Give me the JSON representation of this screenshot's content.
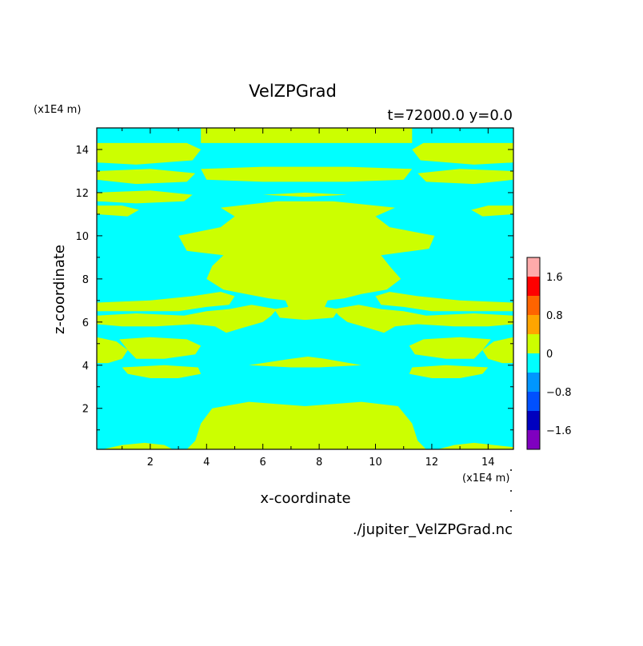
{
  "chart_data": {
    "type": "heatmap",
    "title": "VelZPGrad",
    "subtitle": "t=72000.0 y=0.0",
    "xlabel": "x-coordinate",
    "ylabel": "z-coordinate",
    "x_unit": "(x1E4 m)",
    "y_unit": "(x1E4 m)",
    "xlim": [
      0.1,
      14.9
    ],
    "ylim": [
      0.1,
      15.0
    ],
    "x_ticks": [
      2,
      4,
      6,
      8,
      10,
      12,
      14
    ],
    "y_ticks": [
      2,
      4,
      6,
      8,
      10,
      12,
      14
    ],
    "footer": "./jupiter_VelZPGrad.nc",
    "background_value_color": "#00ffff",
    "regions_value_color": "#ccff00",
    "colorbar": {
      "levels": [
        {
          "lo": -2.0,
          "hi": -1.6,
          "color": "#7f00bf"
        },
        {
          "lo": -1.6,
          "hi": -1.2,
          "color": "#0000bf"
        },
        {
          "lo": -1.2,
          "hi": -0.8,
          "color": "#0050ff"
        },
        {
          "lo": -0.8,
          "hi": -0.4,
          "color": "#0096ff"
        },
        {
          "lo": -0.4,
          "hi": 0.0,
          "color": "#00ffff"
        },
        {
          "lo": 0.0,
          "hi": 0.4,
          "color": "#ccff00"
        },
        {
          "lo": 0.4,
          "hi": 0.8,
          "color": "#ffa500"
        },
        {
          "lo": 0.8,
          "hi": 1.2,
          "color": "#ff6400"
        },
        {
          "lo": 1.2,
          "hi": 1.6,
          "color": "#ff0000"
        },
        {
          "lo": 1.6,
          "hi": 2.0,
          "color": "#ffaaaa"
        }
      ],
      "tick_labels": [
        {
          "value": 1.6,
          "label": "1.6"
        },
        {
          "value": 0.8,
          "label": "0.8"
        },
        {
          "value": 0.0,
          "label": "0"
        },
        {
          "value": -0.8,
          "label": "−0.8"
        },
        {
          "value": -1.6,
          "label": "−1.6"
        }
      ]
    },
    "positive_regions": [
      {
        "name": "top-center-band",
        "pts": [
          [
            3.8,
            15.0
          ],
          [
            11.3,
            15.0
          ],
          [
            11.3,
            14.3
          ],
          [
            3.8,
            14.3
          ]
        ]
      },
      {
        "name": "top-left-band-a",
        "pts": [
          [
            0.1,
            14.3
          ],
          [
            3.3,
            14.3
          ],
          [
            3.8,
            14.0
          ],
          [
            3.5,
            13.5
          ],
          [
            1.5,
            13.3
          ],
          [
            0.1,
            13.4
          ]
        ]
      },
      {
        "name": "top-left-band-b",
        "pts": [
          [
            0.1,
            13.0
          ],
          [
            2.0,
            13.1
          ],
          [
            3.6,
            12.9
          ],
          [
            3.3,
            12.5
          ],
          [
            1.5,
            12.4
          ],
          [
            0.1,
            12.6
          ]
        ]
      },
      {
        "name": "top-left-band-c",
        "pts": [
          [
            0.1,
            12.0
          ],
          [
            2.0,
            12.1
          ],
          [
            3.5,
            11.9
          ],
          [
            3.2,
            11.6
          ],
          [
            1.5,
            11.5
          ],
          [
            0.1,
            11.6
          ]
        ]
      },
      {
        "name": "left-stripe-11",
        "pts": [
          [
            0.1,
            11.4
          ],
          [
            1.0,
            11.4
          ],
          [
            1.6,
            11.2
          ],
          [
            1.2,
            10.9
          ],
          [
            0.1,
            11.0
          ]
        ]
      },
      {
        "name": "top-right-band-a",
        "pts": [
          [
            14.9,
            14.3
          ],
          [
            11.7,
            14.3
          ],
          [
            11.3,
            14.0
          ],
          [
            11.6,
            13.5
          ],
          [
            13.5,
            13.3
          ],
          [
            14.9,
            13.4
          ]
        ]
      },
      {
        "name": "top-right-band-b",
        "pts": [
          [
            14.9,
            13.0
          ],
          [
            13.0,
            13.1
          ],
          [
            11.5,
            12.9
          ],
          [
            11.8,
            12.5
          ],
          [
            13.5,
            12.4
          ],
          [
            14.9,
            12.6
          ]
        ]
      },
      {
        "name": "right-stripe-11",
        "pts": [
          [
            14.9,
            11.4
          ],
          [
            14.0,
            11.4
          ],
          [
            13.4,
            11.2
          ],
          [
            13.8,
            10.9
          ],
          [
            14.9,
            11.0
          ]
        ]
      },
      {
        "name": "band-13",
        "pts": [
          [
            3.8,
            13.1
          ],
          [
            6.0,
            13.2
          ],
          [
            9.0,
            13.2
          ],
          [
            11.3,
            13.1
          ],
          [
            11.0,
            12.6
          ],
          [
            9.0,
            12.5
          ],
          [
            6.0,
            12.5
          ],
          [
            4.0,
            12.6
          ]
        ]
      },
      {
        "name": "band-12",
        "pts": [
          [
            6.0,
            11.9
          ],
          [
            7.5,
            12.0
          ],
          [
            9.0,
            11.9
          ],
          [
            7.5,
            11.8
          ]
        ]
      },
      {
        "name": "center-main",
        "pts": [
          [
            3.0,
            10.0
          ],
          [
            4.5,
            10.4
          ],
          [
            5.0,
            10.9
          ],
          [
            4.5,
            11.3
          ],
          [
            6.5,
            11.6
          ],
          [
            8.5,
            11.6
          ],
          [
            10.7,
            11.3
          ],
          [
            10.0,
            10.9
          ],
          [
            10.5,
            10.4
          ],
          [
            12.1,
            10.0
          ],
          [
            11.9,
            9.4
          ],
          [
            10.2,
            9.1
          ],
          [
            10.5,
            8.6
          ],
          [
            10.9,
            8.0
          ],
          [
            10.4,
            7.5
          ],
          [
            9.5,
            7.3
          ],
          [
            8.9,
            7.1
          ],
          [
            8.3,
            7.0
          ],
          [
            8.2,
            6.7
          ],
          [
            8.7,
            6.6
          ],
          [
            8.5,
            6.2
          ],
          [
            7.5,
            6.1
          ],
          [
            6.6,
            6.2
          ],
          [
            6.4,
            6.6
          ],
          [
            6.9,
            6.7
          ],
          [
            6.8,
            7.0
          ],
          [
            6.2,
            7.1
          ],
          [
            5.4,
            7.3
          ],
          [
            4.6,
            7.5
          ],
          [
            4.0,
            8.0
          ],
          [
            4.2,
            8.6
          ],
          [
            4.6,
            9.1
          ],
          [
            3.3,
            9.3
          ]
        ]
      },
      {
        "name": "left-mid-arm-a",
        "pts": [
          [
            0.1,
            6.9
          ],
          [
            2.0,
            7.0
          ],
          [
            3.5,
            7.2
          ],
          [
            4.5,
            7.4
          ],
          [
            5.0,
            7.2
          ],
          [
            4.8,
            6.8
          ],
          [
            4.0,
            6.7
          ],
          [
            3.0,
            6.5
          ],
          [
            1.5,
            6.5
          ],
          [
            0.1,
            6.5
          ]
        ]
      },
      {
        "name": "left-mid-arm-b",
        "pts": [
          [
            0.1,
            6.3
          ],
          [
            1.5,
            6.4
          ],
          [
            3.2,
            6.3
          ],
          [
            4.0,
            6.5
          ],
          [
            4.8,
            6.6
          ],
          [
            5.6,
            6.8
          ],
          [
            6.5,
            6.6
          ],
          [
            6.3,
            6.3
          ],
          [
            6.0,
            6.0
          ],
          [
            5.2,
            5.7
          ],
          [
            4.7,
            5.5
          ],
          [
            4.3,
            5.8
          ],
          [
            3.5,
            5.9
          ],
          [
            2.2,
            5.8
          ],
          [
            1.0,
            5.8
          ],
          [
            0.1,
            5.9
          ]
        ]
      },
      {
        "name": "right-mid-arm-a",
        "pts": [
          [
            14.9,
            6.9
          ],
          [
            13.0,
            7.0
          ],
          [
            11.5,
            7.2
          ],
          [
            10.5,
            7.4
          ],
          [
            10.0,
            7.2
          ],
          [
            10.2,
            6.8
          ],
          [
            11.0,
            6.7
          ],
          [
            12.0,
            6.5
          ],
          [
            13.5,
            6.5
          ],
          [
            14.9,
            6.5
          ]
        ]
      },
      {
        "name": "right-mid-arm-b",
        "pts": [
          [
            14.9,
            6.3
          ],
          [
            13.5,
            6.4
          ],
          [
            11.8,
            6.3
          ],
          [
            11.0,
            6.5
          ],
          [
            10.2,
            6.6
          ],
          [
            9.4,
            6.8
          ],
          [
            8.5,
            6.6
          ],
          [
            8.7,
            6.3
          ],
          [
            9.0,
            6.0
          ],
          [
            9.8,
            5.7
          ],
          [
            10.3,
            5.5
          ],
          [
            10.7,
            5.8
          ],
          [
            11.5,
            5.9
          ],
          [
            12.8,
            5.8
          ],
          [
            14.0,
            5.8
          ],
          [
            14.9,
            5.9
          ]
        ]
      },
      {
        "name": "left-lobe-5",
        "pts": [
          [
            0.1,
            5.3
          ],
          [
            0.8,
            5.1
          ],
          [
            1.2,
            4.7
          ],
          [
            1.0,
            4.3
          ],
          [
            0.5,
            4.1
          ],
          [
            0.1,
            4.1
          ]
        ]
      },
      {
        "name": "left-band-5",
        "pts": [
          [
            0.9,
            5.2
          ],
          [
            2.0,
            5.3
          ],
          [
            3.3,
            5.2
          ],
          [
            3.8,
            4.9
          ],
          [
            3.6,
            4.5
          ],
          [
            2.5,
            4.3
          ],
          [
            1.5,
            4.3
          ],
          [
            1.2,
            4.7
          ]
        ]
      },
      {
        "name": "right-lobe-5",
        "pts": [
          [
            14.9,
            5.3
          ],
          [
            14.2,
            5.1
          ],
          [
            13.8,
            4.7
          ],
          [
            14.0,
            4.3
          ],
          [
            14.5,
            4.1
          ],
          [
            14.9,
            4.1
          ]
        ]
      },
      {
        "name": "right-band-5",
        "pts": [
          [
            14.1,
            5.2
          ],
          [
            13.0,
            5.3
          ],
          [
            11.7,
            5.2
          ],
          [
            11.2,
            4.9
          ],
          [
            11.4,
            4.5
          ],
          [
            12.5,
            4.3
          ],
          [
            13.5,
            4.3
          ],
          [
            13.8,
            4.7
          ]
        ]
      },
      {
        "name": "band-4-left",
        "pts": [
          [
            1.0,
            3.9
          ],
          [
            2.5,
            4.0
          ],
          [
            3.7,
            3.9
          ],
          [
            3.8,
            3.6
          ],
          [
            3.0,
            3.4
          ],
          [
            2.0,
            3.4
          ],
          [
            1.2,
            3.6
          ]
        ]
      },
      {
        "name": "band-4-right",
        "pts": [
          [
            14.0,
            3.9
          ],
          [
            12.5,
            4.0
          ],
          [
            11.3,
            3.9
          ],
          [
            11.2,
            3.6
          ],
          [
            12.0,
            3.4
          ],
          [
            13.0,
            3.4
          ],
          [
            13.8,
            3.6
          ]
        ]
      },
      {
        "name": "band-4-center",
        "pts": [
          [
            5.5,
            4.0
          ],
          [
            7.0,
            4.3
          ],
          [
            7.6,
            4.4
          ],
          [
            8.2,
            4.3
          ],
          [
            9.5,
            4.0
          ],
          [
            8.0,
            3.9
          ],
          [
            7.0,
            3.9
          ]
        ]
      },
      {
        "name": "bottom-center",
        "pts": [
          [
            3.3,
            0.1
          ],
          [
            3.6,
            0.5
          ],
          [
            3.8,
            1.3
          ],
          [
            4.2,
            2.0
          ],
          [
            5.5,
            2.3
          ],
          [
            7.5,
            2.1
          ],
          [
            9.5,
            2.3
          ],
          [
            10.8,
            2.1
          ],
          [
            11.3,
            1.3
          ],
          [
            11.5,
            0.5
          ],
          [
            11.8,
            0.1
          ]
        ]
      },
      {
        "name": "bottom-left-bump",
        "pts": [
          [
            0.3,
            0.1
          ],
          [
            1.0,
            0.3
          ],
          [
            1.8,
            0.4
          ],
          [
            2.5,
            0.3
          ],
          [
            2.8,
            0.1
          ]
        ]
      },
      {
        "name": "bottom-right-bump",
        "pts": [
          [
            12.2,
            0.1
          ],
          [
            12.8,
            0.3
          ],
          [
            13.5,
            0.4
          ],
          [
            14.2,
            0.3
          ],
          [
            14.9,
            0.2
          ],
          [
            14.9,
            0.1
          ]
        ]
      }
    ]
  }
}
